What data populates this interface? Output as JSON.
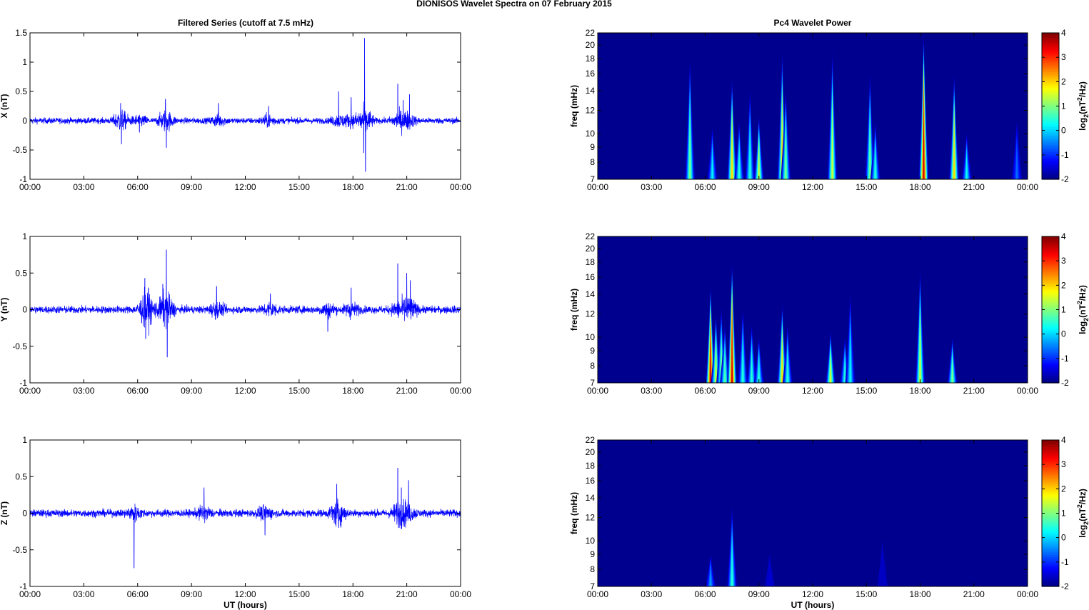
{
  "title": "DIONISOS Wavelet Spectra on 07 February  2015",
  "left_title": "Filtered Series (cutoff at 7.5 mHz)",
  "right_title": "Pc4 Wavelet Power",
  "xlabel": "UT (hours)",
  "freq_label": "freq (mHz)",
  "cbar_label": "log2(nT2/Hz)",
  "cbar_label_parts": {
    "a": "log",
    "b": "2",
    "c": "(nT",
    "d": "2",
    "e": "/Hz)"
  },
  "x_ticks": [
    "00:00",
    "03:00",
    "06:00",
    "09:00",
    "12:00",
    "15:00",
    "18:00",
    "21:00",
    "00:00"
  ],
  "freq_ticks": [
    "7",
    "8",
    "9",
    "10",
    "12",
    "14",
    "16",
    "18",
    "20",
    "22"
  ],
  "freq_tick_values": [
    7,
    8,
    9,
    10,
    12,
    14,
    16,
    18,
    20,
    22
  ],
  "cbar_ticks": [
    "-2",
    "-1",
    "0",
    "1",
    "2",
    "3",
    "4"
  ],
  "cbar_tick_values": [
    -2,
    -1,
    0,
    1,
    2,
    3,
    4
  ],
  "colors": {
    "series": "#0000ff",
    "background": "#00008f"
  },
  "chart_data": [
    {
      "type": "line",
      "title": "Filtered Series (cutoff at 7.5 mHz)",
      "ylabel": "X (nT)",
      "xlabel": "",
      "xlim_hours": [
        0,
        24
      ],
      "ylim": [
        -1,
        1.5
      ],
      "y_ticks": [
        "-1",
        "-0.5",
        "0",
        "0.5",
        "1",
        "1.5"
      ],
      "y_tick_values": [
        -1,
        -0.5,
        0,
        0.5,
        1,
        1.5
      ],
      "baseline_noise_nT": 0.05,
      "spikes": [
        {
          "t": 5.05,
          "v": 0.3
        },
        {
          "t": 5.1,
          "v": -0.4
        },
        {
          "t": 6.1,
          "v": -0.2
        },
        {
          "t": 7.55,
          "v": 0.37
        },
        {
          "t": 7.6,
          "v": -0.46
        },
        {
          "t": 10.5,
          "v": 0.3
        },
        {
          "t": 13.3,
          "v": 0.25
        },
        {
          "t": 17.2,
          "v": 0.5
        },
        {
          "t": 17.9,
          "v": 0.4
        },
        {
          "t": 18.65,
          "v": 1.41
        },
        {
          "t": 18.7,
          "v": -0.87
        },
        {
          "t": 18.6,
          "v": -0.55
        },
        {
          "t": 20.5,
          "v": 0.63
        },
        {
          "t": 20.8,
          "v": 0.35
        },
        {
          "t": 21.15,
          "v": 0.45
        }
      ]
    },
    {
      "type": "line",
      "ylabel": "Y (nT)",
      "xlabel": "",
      "xlim_hours": [
        0,
        24
      ],
      "ylim": [
        -1,
        1
      ],
      "y_ticks": [
        "-1",
        "-0.5",
        "0",
        "0.5",
        "1"
      ],
      "y_tick_values": [
        -1,
        -0.5,
        0,
        0.5,
        1
      ],
      "baseline_noise_nT": 0.05,
      "spikes": [
        {
          "t": 6.4,
          "v": 0.43
        },
        {
          "t": 6.45,
          "v": -0.4
        },
        {
          "t": 6.6,
          "v": 0.3
        },
        {
          "t": 7.6,
          "v": 0.82
        },
        {
          "t": 7.65,
          "v": -0.65
        },
        {
          "t": 7.4,
          "v": 0.35
        },
        {
          "t": 10.4,
          "v": 0.32
        },
        {
          "t": 13.4,
          "v": 0.22
        },
        {
          "t": 16.6,
          "v": -0.3
        },
        {
          "t": 17.9,
          "v": 0.3
        },
        {
          "t": 20.5,
          "v": 0.63
        },
        {
          "t": 21.0,
          "v": 0.5
        },
        {
          "t": 21.2,
          "v": 0.4
        }
      ]
    },
    {
      "type": "line",
      "ylabel": "Z (nT)",
      "xlabel": "UT (hours)",
      "xlim_hours": [
        0,
        24
      ],
      "ylim": [
        -1,
        1
      ],
      "y_ticks": [
        "-1",
        "-0.5",
        "0",
        "0.5",
        "1"
      ],
      "y_tick_values": [
        -1,
        -0.5,
        0,
        0.5,
        1
      ],
      "baseline_noise_nT": 0.05,
      "spikes": [
        {
          "t": 5.8,
          "v": -0.75
        },
        {
          "t": 9.7,
          "v": 0.35
        },
        {
          "t": 13.1,
          "v": -0.3
        },
        {
          "t": 17.1,
          "v": 0.4
        },
        {
          "t": 17.2,
          "v": -0.2
        },
        {
          "t": 20.5,
          "v": 0.62
        },
        {
          "t": 21.1,
          "v": 0.45
        },
        {
          "t": 20.7,
          "v": 0.35
        }
      ]
    },
    {
      "type": "heatmap",
      "title": "Pc4 Wavelet Power",
      "ylabel": "freq (mHz)",
      "xlabel": "",
      "xlim_hours": [
        0,
        24
      ],
      "ylim_mHz": [
        7,
        22
      ],
      "clim": [
        -2,
        4
      ],
      "colormap": "jet",
      "bursts": [
        {
          "t": 5.15,
          "top": 18,
          "peak": 1.0
        },
        {
          "t": 6.4,
          "top": 10.5,
          "peak": 0.2
        },
        {
          "t": 7.5,
          "top": 15.5,
          "peak": 2.0
        },
        {
          "t": 7.9,
          "top": 11,
          "peak": 0.5
        },
        {
          "t": 8.5,
          "top": 14,
          "peak": 0.5
        },
        {
          "t": 9.0,
          "top": 11.5,
          "peak": 1.5
        },
        {
          "t": 10.3,
          "top": 19,
          "peak": 2.0
        },
        {
          "t": 10.5,
          "top": 14,
          "peak": 1.0
        },
        {
          "t": 13.1,
          "top": 19,
          "peak": 1.5
        },
        {
          "t": 15.2,
          "top": 16,
          "peak": 1.0
        },
        {
          "t": 15.5,
          "top": 11,
          "peak": 0.5
        },
        {
          "t": 18.2,
          "top": 22,
          "peak": 3.5
        },
        {
          "t": 19.9,
          "top": 16,
          "peak": 2.0
        },
        {
          "t": 20.6,
          "top": 10,
          "peak": 0.3
        },
        {
          "t": 23.4,
          "top": 11,
          "peak": -0.6
        }
      ]
    },
    {
      "type": "heatmap",
      "ylabel": "freq (mHz)",
      "xlabel": "",
      "xlim_hours": [
        0,
        24
      ],
      "ylim_mHz": [
        7,
        22
      ],
      "clim": [
        -2,
        4
      ],
      "colormap": "jet",
      "bursts": [
        {
          "t": 6.3,
          "top": 15,
          "peak": 3.5
        },
        {
          "t": 6.6,
          "top": 12,
          "peak": 1.5
        },
        {
          "t": 6.9,
          "top": 12.5,
          "peak": 1.0
        },
        {
          "t": 7.1,
          "top": 11,
          "peak": 0.8
        },
        {
          "t": 7.5,
          "top": 18,
          "peak": 3.5
        },
        {
          "t": 8.1,
          "top": 12.5,
          "peak": 0.5
        },
        {
          "t": 8.6,
          "top": 11,
          "peak": 0.5
        },
        {
          "t": 9.0,
          "top": 10,
          "peak": 0.5
        },
        {
          "t": 10.3,
          "top": 13,
          "peak": 2.0
        },
        {
          "t": 10.6,
          "top": 11,
          "peak": 0.5
        },
        {
          "t": 13.0,
          "top": 10.5,
          "peak": 1.5
        },
        {
          "t": 13.8,
          "top": 10,
          "peak": 0.5
        },
        {
          "t": 14.1,
          "top": 14,
          "peak": 0.3
        },
        {
          "t": 18.0,
          "top": 17,
          "peak": 1.5
        },
        {
          "t": 19.8,
          "top": 10,
          "peak": 1.0
        }
      ]
    },
    {
      "type": "heatmap",
      "ylabel": "freq (mHz)",
      "xlabel": "UT (hours)",
      "xlim_hours": [
        0,
        24
      ],
      "ylim_mHz": [
        7,
        22
      ],
      "clim": [
        -2,
        4
      ],
      "colormap": "jet",
      "bursts": [
        {
          "t": 6.3,
          "top": 9,
          "peak": -0.3
        },
        {
          "t": 7.5,
          "top": 13,
          "peak": 0.5
        },
        {
          "t": 9.6,
          "top": 9,
          "peak": -1.5
        },
        {
          "t": 15.9,
          "top": 10,
          "peak": -1.6
        }
      ]
    }
  ]
}
